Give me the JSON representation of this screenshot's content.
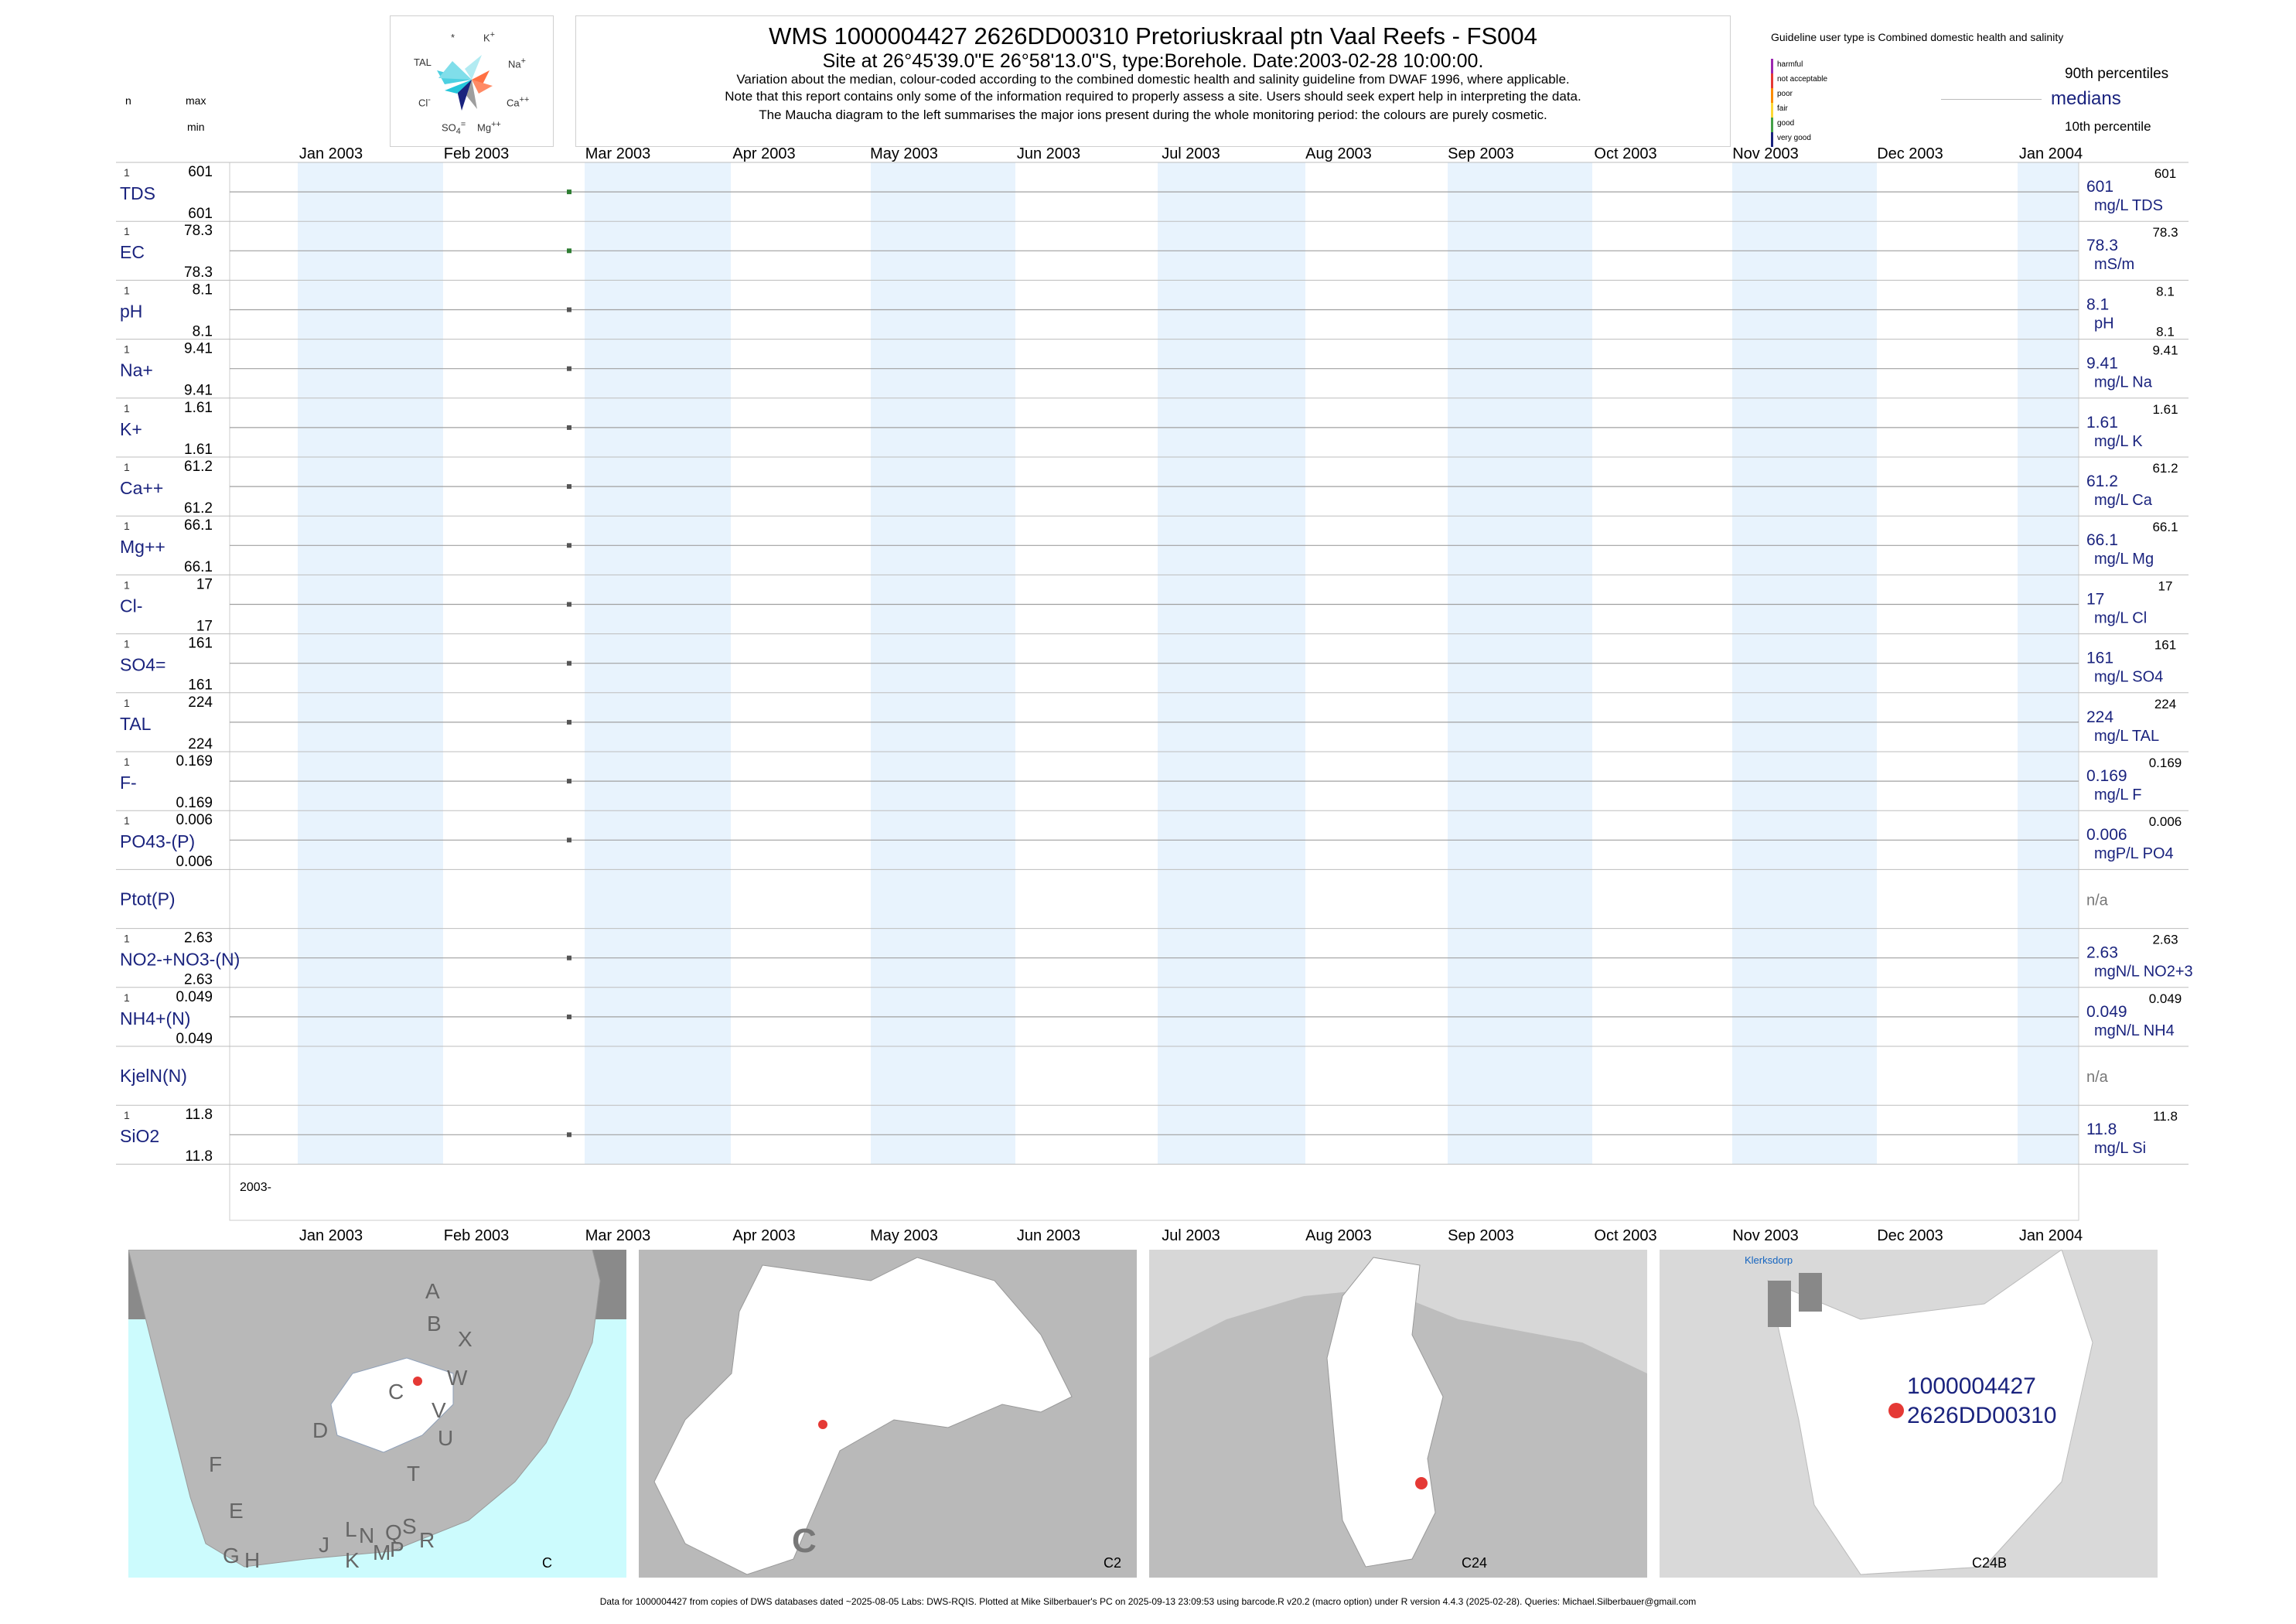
{
  "header": {
    "title": "WMS 1000004427 2626DD00310 Pretoriuskraal ptn Vaal Reefs - FS004",
    "subtitle": "Site at 26°45'39.0\"E 26°58'13.0\"S, type:Borehole. Date:2003-02-28 10:00:00.",
    "note1": "Variation about the median,  colour-coded according to the combined domestic health and salinity guideline from DWAF 1996, where applicable.",
    "note2": "Note that this report contains only some of the information required to properly assess a site. Users should seek expert help in interpreting the data.",
    "note3": "The Maucha diagram to the left summarises the major ions present during the whole monitoring period: the colours are purely cosmetic."
  },
  "left_header": {
    "n": "n",
    "max": "max",
    "min": "min"
  },
  "maucha": {
    "labels": [
      "*",
      "K+",
      "TAL",
      "Na+",
      "Cl-",
      "Ca++",
      "SO4=",
      "Mg++"
    ]
  },
  "legend": {
    "guideline": "Guideline user type is Combined domestic health and salinity",
    "classes": [
      {
        "label": "harmful",
        "color": "#9c27b0"
      },
      {
        "label": "not acceptable",
        "color": "#e53935"
      },
      {
        "label": "poor",
        "color": "#fb8c00"
      },
      {
        "label": "fair",
        "color": "#fdd835"
      },
      {
        "label": "good",
        "color": "#43a047"
      },
      {
        "label": "very good",
        "color": "#1a237e"
      }
    ],
    "p90": "90th percentiles",
    "medians": "medians",
    "p10": "10th percentile"
  },
  "months": [
    "Jan 2003",
    "Feb 2003",
    "Mar 2003",
    "Apr 2003",
    "May 2003",
    "Jun 2003",
    "Jul 2003",
    "Aug 2003",
    "Sep 2003",
    "Oct 2003",
    "Nov 2003",
    "Dec 2003",
    "Jan 2004"
  ],
  "chart_data": {
    "type": "scatter",
    "x_range": [
      "2003-01-01",
      "2004-01-01"
    ],
    "sample_date": "2003-02-28",
    "year_label": "2003-",
    "rows": [
      {
        "name": "TDS",
        "n": "1",
        "max": "601",
        "min": "601",
        "median": "601",
        "p90": "601",
        "unit": "mg/L TDS",
        "value": 601,
        "color": "#2e7d32"
      },
      {
        "name": "EC",
        "n": "1",
        "max": "78.3",
        "min": "78.3",
        "median": "78.3",
        "p90": "78.3",
        "unit": "mS/m",
        "value": 78.3,
        "color": "#2e7d32"
      },
      {
        "name": "pH",
        "n": "1",
        "max": "8.1",
        "min": "8.1",
        "median": "8.1",
        "p90": "8.1",
        "p10": "8.1",
        "unit": "pH",
        "value": 8.1,
        "color": "#555555"
      },
      {
        "name": "Na+",
        "n": "1",
        "max": "9.41",
        "min": "9.41",
        "median": "9.41",
        "p90": "9.41",
        "unit": "mg/L Na",
        "value": 9.41,
        "color": "#555555"
      },
      {
        "name": "K+",
        "n": "1",
        "max": "1.61",
        "min": "1.61",
        "median": "1.61",
        "p90": "1.61",
        "unit": "mg/L K",
        "value": 1.61,
        "color": "#555555"
      },
      {
        "name": "Ca++",
        "n": "1",
        "max": "61.2",
        "min": "61.2",
        "median": "61.2",
        "p90": "61.2",
        "unit": "mg/L Ca",
        "value": 61.2,
        "color": "#555555"
      },
      {
        "name": "Mg++",
        "n": "1",
        "max": "66.1",
        "min": "66.1",
        "median": "66.1",
        "p90": "66.1",
        "unit": "mg/L Mg",
        "value": 66.1,
        "color": "#555555"
      },
      {
        "name": "Cl-",
        "n": "1",
        "max": "17",
        "min": "17",
        "median": "17",
        "p90": "17",
        "unit": "mg/L Cl",
        "value": 17,
        "color": "#555555"
      },
      {
        "name": "SO4=",
        "n": "1",
        "max": "161",
        "min": "161",
        "median": "161",
        "p90": "161",
        "unit": "mg/L SO4",
        "value": 161,
        "color": "#555555"
      },
      {
        "name": "TAL",
        "n": "1",
        "max": "224",
        "min": "224",
        "median": "224",
        "p90": "224",
        "unit": "mg/L TAL",
        "value": 224,
        "color": "#555555"
      },
      {
        "name": "F-",
        "n": "1",
        "max": "0.169",
        "min": "0.169",
        "median": "0.169",
        "p90": "0.169",
        "unit": "mg/L F",
        "value": 0.169,
        "color": "#555555"
      },
      {
        "name": "PO43-(P)",
        "n": "1",
        "max": "0.006",
        "min": "0.006",
        "median": "0.006",
        "p90": "0.006",
        "unit": "mgP/L PO4",
        "value": 0.006,
        "color": "#555555"
      },
      {
        "name": "Ptot(P)",
        "n": "",
        "max": "",
        "min": "",
        "median": "n/a",
        "p90": "",
        "unit": "",
        "value": null,
        "color": "#555555"
      },
      {
        "name": "NO2-+NO3-(N)",
        "n": "1",
        "max": "2.63",
        "min": "2.63",
        "median": "2.63",
        "p90": "2.63",
        "unit": "mgN/L NO2+3",
        "value": 2.63,
        "color": "#555555"
      },
      {
        "name": "NH4+(N)",
        "n": "1",
        "max": "0.049",
        "min": "0.049",
        "median": "0.049",
        "p90": "0.049",
        "unit": "mgN/L NH4",
        "value": 0.049,
        "color": "#555555"
      },
      {
        "name": "KjelN(N)",
        "n": "",
        "max": "",
        "min": "",
        "median": "n/a",
        "p90": "",
        "unit": "",
        "value": null,
        "color": "#555555"
      },
      {
        "name": "SiO2",
        "n": "1",
        "max": "11.8",
        "min": "11.8",
        "median": "11.8",
        "p90": "11.8",
        "unit": "mg/L Si",
        "value": 11.8,
        "color": "#555555"
      }
    ]
  },
  "maps": {
    "map1": {
      "caption": "C",
      "letters": [
        "A",
        "B",
        "X",
        "W",
        "C",
        "V",
        "U",
        "D",
        "T",
        "F",
        "E",
        "S",
        "R",
        "Q",
        "N",
        "L",
        "J",
        "G",
        "H",
        "K",
        "M",
        "P"
      ]
    },
    "map2": {
      "caption": "C2",
      "big": "C"
    },
    "map3": {
      "caption": "C24"
    },
    "map4": {
      "caption": "C24B",
      "town": "Klerksdorp",
      "site1": "1000004427",
      "site2": "2626DD00310"
    }
  },
  "footer": "Data for 1000004427 from copies of DWS databases dated ~2025-08-05 Labs: DWS-RQIS. Plotted at Mike Silberbauer's PC on 2025-09-13 23:09:53 using barcode.R v20.2 (macro option) under R version 4.4.3 (2025-02-28). Queries: Michael.Silberbauer@gmail.com"
}
